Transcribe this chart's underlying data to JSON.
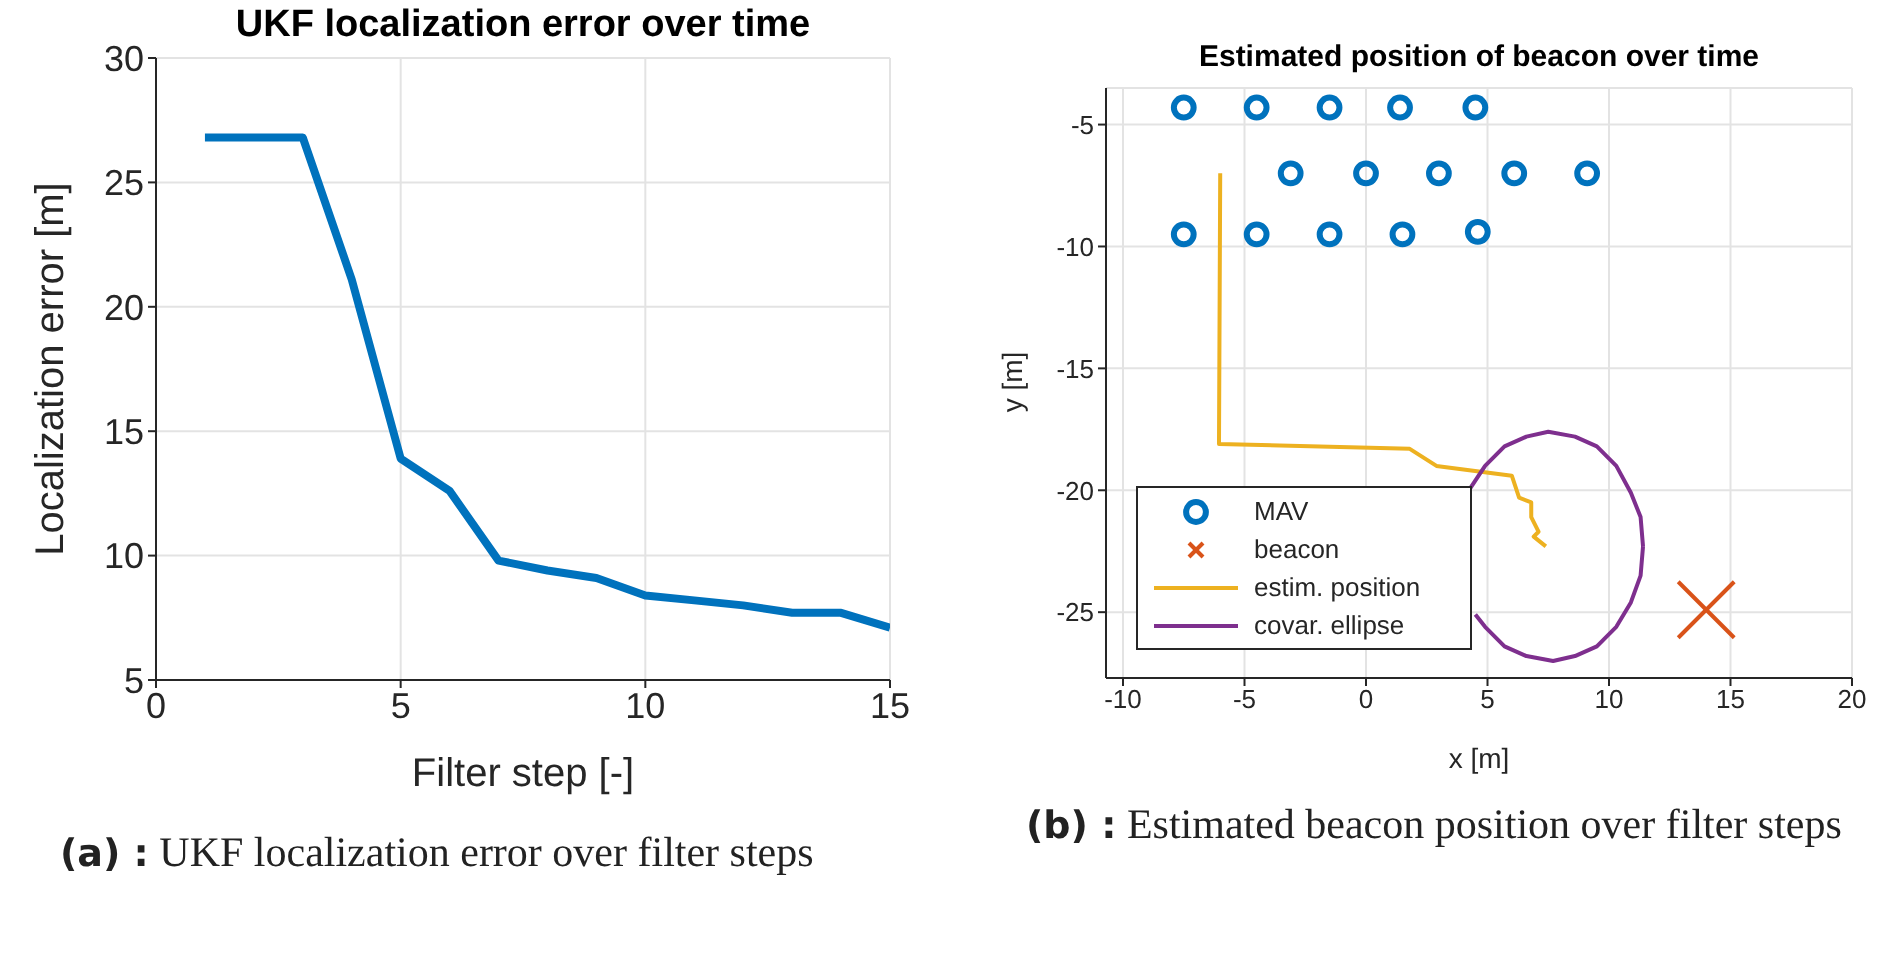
{
  "chart_data": [
    {
      "type": "line",
      "title": "UKF localization error over time",
      "xlabel": "Filter step [-]",
      "ylabel": "Localization error [m]",
      "x": [
        1,
        2,
        3,
        4,
        5,
        6,
        7,
        8,
        9,
        10,
        11,
        12,
        13,
        14,
        15
      ],
      "values": [
        26.8,
        26.8,
        26.8,
        21.1,
        13.9,
        12.6,
        9.8,
        9.4,
        9.1,
        8.4,
        8.2,
        8.0,
        7.7,
        7.7,
        7.1
      ],
      "color": "#0072bd",
      "xlim": [
        0,
        15
      ],
      "xticks": [
        0,
        5,
        10,
        15
      ],
      "ylim": [
        5,
        30
      ],
      "yticks": [
        5,
        10,
        15,
        20,
        25,
        30
      ],
      "grid": true,
      "annotations": [
        "(a) : UKF localization error over filter steps"
      ]
    },
    {
      "type": "scatter",
      "title": "Estimated position of beacon over time",
      "xlabel": "x [m]",
      "ylabel": "y [m]",
      "xlim": [
        -10.7,
        20
      ],
      "xticks": [
        -10,
        -5,
        0,
        5,
        10,
        15,
        20
      ],
      "ylim": [
        -27.7,
        -3.5
      ],
      "yticks": [
        -25,
        -20,
        -15,
        -10,
        -5
      ],
      "grid": true,
      "legend": "bottom left",
      "annotations": [
        "(b) : Estimated beacon position over filter steps"
      ],
      "series": [
        {
          "name": "MAV",
          "type": "scatter",
          "marker": "circle",
          "color": "#0072bd",
          "x": [
            -7.5,
            -4.5,
            -1.5,
            1.4,
            4.5,
            -3.1,
            0,
            3,
            6.1,
            9.1,
            -7.5,
            -4.5,
            -1.5,
            1.5,
            4.6
          ],
          "values": [
            -4.3,
            -4.3,
            -4.3,
            -4.3,
            -4.3,
            -7,
            -7,
            -7,
            -7,
            -7,
            -9.5,
            -9.5,
            -9.5,
            -9.5,
            -9.4
          ]
        },
        {
          "name": "beacon",
          "type": "scatter",
          "marker": "cross",
          "color": "#d95319",
          "x": [
            14
          ],
          "values": [
            -24.9
          ]
        },
        {
          "name": "estim. position",
          "type": "line",
          "color": "#edb120",
          "x": [
            -6,
            -6.05,
            1.8,
            2.9,
            6,
            6.3,
            6.8,
            6.8,
            7.1,
            6.9,
            7.4
          ],
          "values": [
            -7,
            -18.1,
            -18.3,
            -19,
            -19.4,
            -20.3,
            -20.5,
            -21.1,
            -21.7,
            -21.9,
            -22.3
          ]
        },
        {
          "name": "covar. ellipse",
          "type": "line",
          "color": "#7e2f8e",
          "x": [
            11.4,
            11.3,
            10.9,
            10.3,
            9.5,
            8.6,
            7.5,
            6.6,
            5.7,
            4.9,
            4.3,
            null,
            4.5,
            4.9,
            5.7,
            6.6,
            7.7,
            8.6,
            9.5,
            10.3,
            10.9,
            11.3,
            11.4
          ],
          "values": [
            -22.3,
            -21.1,
            -20.1,
            -19,
            -18.2,
            -17.8,
            -17.6,
            -17.8,
            -18.2,
            -19,
            -19.9,
            null,
            -25.1,
            -25.6,
            -26.4,
            -26.8,
            -27,
            -26.8,
            -26.4,
            -25.6,
            -24.6,
            -23.5,
            -22.3
          ]
        }
      ]
    }
  ]
}
